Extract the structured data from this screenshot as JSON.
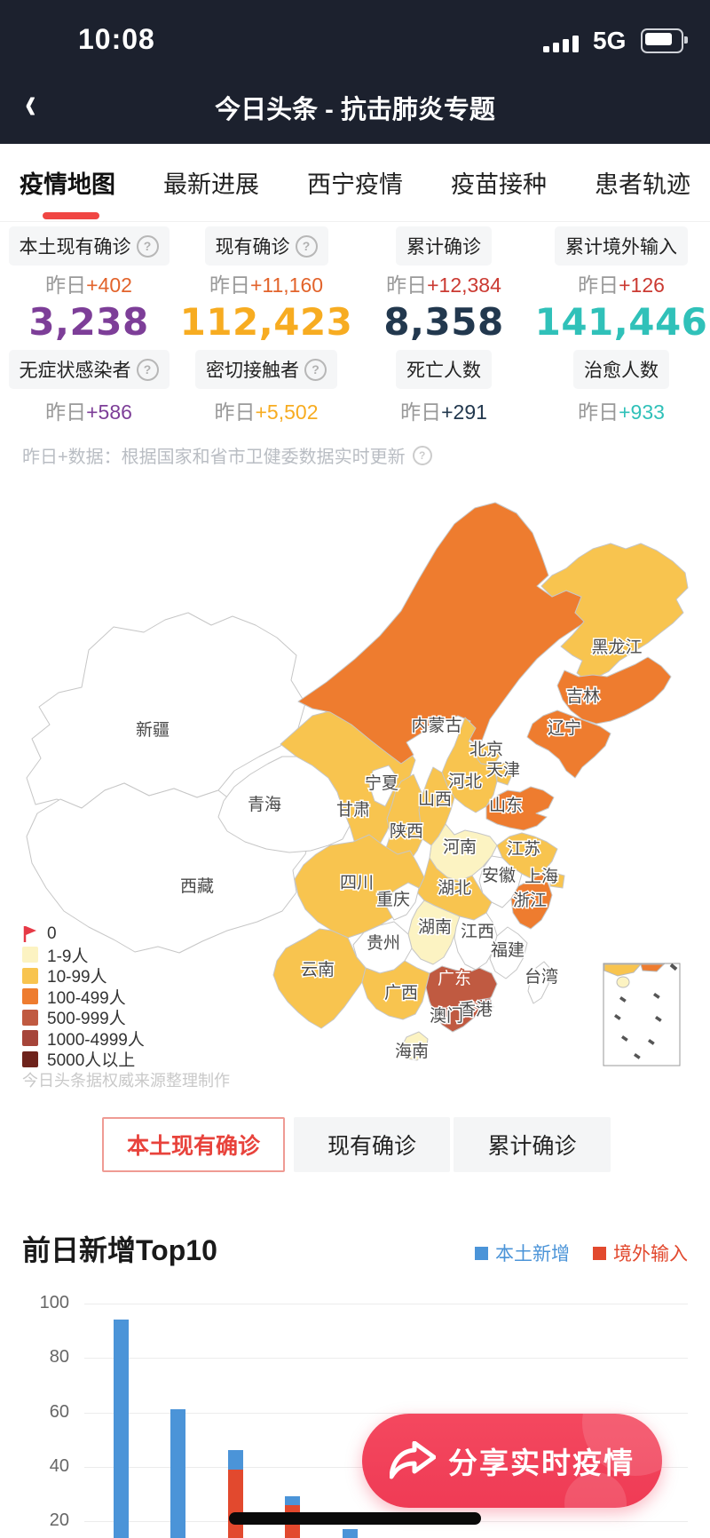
{
  "status_bar": {
    "time": "10:08",
    "network": "5G"
  },
  "nav": {
    "title": "今日头条 - 抗击肺炎专题"
  },
  "tabs": [
    {
      "label": "疫情地图",
      "active": true
    },
    {
      "label": "最新进展",
      "active": false
    },
    {
      "label": "西宁疫情",
      "active": false
    },
    {
      "label": "疫苗接种",
      "active": false
    },
    {
      "label": "患者轨迹",
      "active": false
    }
  ],
  "stats": {
    "delta_prefix": "昨日",
    "columns": [
      {
        "top_label": "本土现有确诊",
        "top_help": true,
        "top_delta": "+402",
        "top_delta_color": "#E2632B",
        "number": "3,238",
        "number_color": "#7D3E98",
        "bottom_label": "无症状感染者",
        "bottom_help": true,
        "bottom_delta": "+586"
      },
      {
        "top_label": "现有确诊",
        "top_help": true,
        "top_delta": "+11,160",
        "top_delta_color": "#E2632B",
        "number": "112,423",
        "number_color": "#F7AC21",
        "bottom_label": "密切接触者",
        "bottom_help": true,
        "bottom_delta": "+5,502"
      },
      {
        "top_label": "累计确诊",
        "top_help": false,
        "top_delta": "+12,384",
        "top_delta_color": "#CB3A32",
        "number": "8,358",
        "number_color": "#22384E",
        "bottom_label": "死亡人数",
        "bottom_help": false,
        "bottom_delta": "+291"
      },
      {
        "top_label": "累计境外输入",
        "top_help": false,
        "top_delta": "+126",
        "top_delta_color": "#CB3A32",
        "number": "141,446",
        "number_color": "#30C1B9",
        "bottom_label": "治愈人数",
        "bottom_help": false,
        "bottom_delta": "+933"
      }
    ],
    "note": "昨日+数据：根据国家和省市卫健委数据实时更新"
  },
  "map": {
    "level_colors": [
      "#FFFFFF",
      "#FCF3C2",
      "#F8C44F",
      "#EE7C2F",
      "#C05A41",
      "#A6453A",
      "#6E231C"
    ],
    "legend": [
      {
        "label": "0",
        "flag": true
      },
      {
        "label": "1-9人",
        "level": 1
      },
      {
        "label": "10-99人",
        "level": 2
      },
      {
        "label": "100-499人",
        "level": 3
      },
      {
        "label": "500-999人",
        "level": 4
      },
      {
        "label": "1000-4999人",
        "level": 5
      },
      {
        "label": "5000人以上",
        "level": 6
      }
    ],
    "flag_color": "#E63946",
    "provinces": [
      {
        "id": "xinjiang",
        "name": "新疆",
        "level": 0
      },
      {
        "id": "xizang",
        "name": "西藏",
        "level": 0
      },
      {
        "id": "qinghai",
        "name": "青海",
        "level": 0
      },
      {
        "id": "gansu",
        "name": "甘肃",
        "level": 2
      },
      {
        "id": "neimenggu",
        "name": "内蒙古",
        "level": 3
      },
      {
        "id": "heilongjiang",
        "name": "黑龙江",
        "level": 2
      },
      {
        "id": "jilin",
        "name": "吉林",
        "level": 3
      },
      {
        "id": "liaoning",
        "name": "辽宁",
        "level": 3
      },
      {
        "id": "beijing",
        "name": "北京",
        "level": 2
      },
      {
        "id": "tianjin",
        "name": "天津",
        "level": 2
      },
      {
        "id": "hebei",
        "name": "河北",
        "level": 2
      },
      {
        "id": "shanxi",
        "name": "山西",
        "level": 2
      },
      {
        "id": "shandong",
        "name": "山东",
        "level": 3
      },
      {
        "id": "ningxia",
        "name": "宁夏",
        "level": 0
      },
      {
        "id": "shaanxi",
        "name": "陕西",
        "level": 2
      },
      {
        "id": "henan",
        "name": "河南",
        "level": 1
      },
      {
        "id": "jiangsu",
        "name": "江苏",
        "level": 2
      },
      {
        "id": "anhui",
        "name": "安徽",
        "level": 0
      },
      {
        "id": "shanghai",
        "name": "上海",
        "level": 2
      },
      {
        "id": "hubei",
        "name": "湖北",
        "level": 2
      },
      {
        "id": "zhejiang",
        "name": "浙江",
        "level": 3
      },
      {
        "id": "sichuan",
        "name": "四川",
        "level": 2
      },
      {
        "id": "chongqing",
        "name": "重庆",
        "level": 0
      },
      {
        "id": "hunan",
        "name": "湖南",
        "level": 1
      },
      {
        "id": "jiangxi",
        "name": "江西",
        "level": 0
      },
      {
        "id": "fujian",
        "name": "福建",
        "level": 0
      },
      {
        "id": "guizhou",
        "name": "贵州",
        "level": 0
      },
      {
        "id": "yunnan",
        "name": "云南",
        "level": 2
      },
      {
        "id": "guangxi",
        "name": "广西",
        "level": 2
      },
      {
        "id": "guangdong",
        "name": "广东",
        "level": 4
      },
      {
        "id": "hongkong",
        "name": "香港",
        "level": 5
      },
      {
        "id": "macau",
        "name": "澳门",
        "level": -1
      },
      {
        "id": "hainan",
        "name": "海南",
        "level": 1
      },
      {
        "id": "taiwan",
        "name": "台湾",
        "level": 0
      }
    ],
    "watermark": "今日头条据权威来源整理制作"
  },
  "toggle_buttons": [
    {
      "label": "本土现有确诊",
      "active": true
    },
    {
      "label": "现有确诊",
      "active": false
    },
    {
      "label": "累计确诊",
      "active": false
    }
  ],
  "chart_data": {
    "type": "bar",
    "title": "前日新增Top10",
    "legend": [
      {
        "name": "本土新增",
        "color": "#4B94D8"
      },
      {
        "name": "境外输入",
        "color": "#E2492E"
      }
    ],
    "yticks": [
      100,
      80,
      60,
      40,
      20
    ],
    "ylim_visible": [
      20,
      100
    ],
    "grid": true,
    "series": [
      {
        "name": "本土新增",
        "values": [
          94,
          61,
          7,
          3,
          17
        ]
      },
      {
        "name": "境外输入",
        "values": [
          0,
          0,
          39,
          26,
          0
        ]
      }
    ],
    "totals": [
      94,
      61,
      46,
      29,
      17
    ],
    "note": "余下柱与横轴标签被分享按钮及屏幕底部遮挡"
  },
  "share_button": {
    "label": "分享实时疫情"
  }
}
